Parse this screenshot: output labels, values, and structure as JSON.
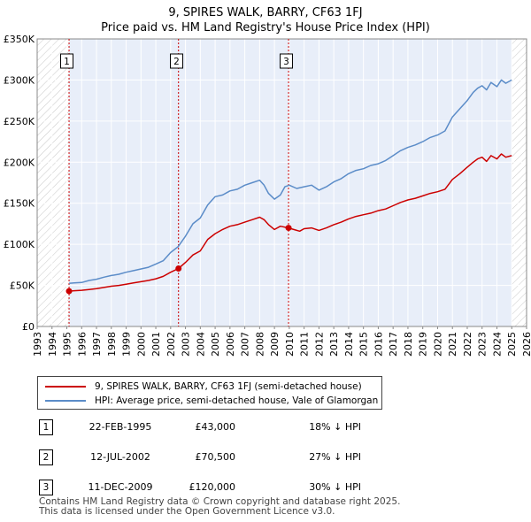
{
  "title": "9, SPIRES WALK, BARRY, CF63 1FJ",
  "subtitle": "Price paid vs. HM Land Registry's House Price Index (HPI)",
  "chart_data": {
    "type": "line",
    "xlim": [
      1993,
      2026
    ],
    "ylim": [
      0,
      350000
    ],
    "y_ticks": [
      {
        "value": 0,
        "label": "£0"
      },
      {
        "value": 50000,
        "label": "£50K"
      },
      {
        "value": 100000,
        "label": "£100K"
      },
      {
        "value": 150000,
        "label": "£150K"
      },
      {
        "value": 200000,
        "label": "£200K"
      },
      {
        "value": 250000,
        "label": "£250K"
      },
      {
        "value": 300000,
        "label": "£300K"
      },
      {
        "value": 350000,
        "label": "£350K"
      }
    ],
    "x_ticks": [
      "1993",
      "1994",
      "1995",
      "1996",
      "1997",
      "1998",
      "1999",
      "2000",
      "2001",
      "2002",
      "2003",
      "2004",
      "2005",
      "2006",
      "2007",
      "2008",
      "2009",
      "2010",
      "2011",
      "2012",
      "2013",
      "2014",
      "2015",
      "2016",
      "2017",
      "2018",
      "2019",
      "2020",
      "2021",
      "2022",
      "2023",
      "2024",
      "2025",
      "2026"
    ],
    "hatched_before": 1995.15,
    "hatched_after": 2025.0,
    "series": [
      {
        "name": "HPI: Average price, semi-detached house, Vale of Glamorgan",
        "color": "#5b8cc8",
        "x": [
          1995.15,
          1995.5,
          1996,
          1996.5,
          1997,
          1997.5,
          1998,
          1998.5,
          1999,
          1999.5,
          2000,
          2000.5,
          2001,
          2001.5,
          2002,
          2002.5,
          2003,
          2003.5,
          2004,
          2004.5,
          2005,
          2005.5,
          2006,
          2006.5,
          2007,
          2007.5,
          2008,
          2008.3,
          2008.6,
          2009,
          2009.4,
          2009.7,
          2010,
          2010.5,
          2011,
          2011.5,
          2012,
          2012.5,
          2013,
          2013.5,
          2014,
          2014.5,
          2015,
          2015.5,
          2016,
          2016.5,
          2017,
          2017.5,
          2018,
          2018.5,
          2019,
          2019.5,
          2020,
          2020.5,
          2021,
          2021.5,
          2022,
          2022.4,
          2022.7,
          2023,
          2023.3,
          2023.6,
          2024,
          2024.3,
          2024.6,
          2025
        ],
        "values": [
          52500,
          53000,
          53500,
          56000,
          57500,
          60000,
          62000,
          63500,
          66000,
          68000,
          70000,
          72000,
          76000,
          80000,
          90000,
          97000,
          110000,
          125000,
          132000,
          148000,
          158000,
          160000,
          165000,
          167000,
          172000,
          175000,
          178000,
          172000,
          162000,
          155000,
          160000,
          170000,
          172000,
          168000,
          170000,
          172000,
          166000,
          170000,
          176000,
          180000,
          186000,
          190000,
          192000,
          196000,
          198000,
          202000,
          208000,
          214000,
          218000,
          221000,
          225000,
          230000,
          233000,
          238000,
          255000,
          265000,
          275000,
          285000,
          290000,
          293000,
          288000,
          297000,
          292000,
          300000,
          296000,
          300000
        ]
      },
      {
        "name": "9, SPIRES WALK, BARRY, CF63 1FJ (semi-detached house)",
        "color": "#cc0000",
        "x": [
          1995.15,
          1995.5,
          1996,
          1996.5,
          1997,
          1997.5,
          1998,
          1998.5,
          1999,
          1999.5,
          2000,
          2000.5,
          2001,
          2001.5,
          2002,
          2002.53,
          2003,
          2003.5,
          2004,
          2004.5,
          2005,
          2005.5,
          2006,
          2006.5,
          2007,
          2007.5,
          2008,
          2008.3,
          2008.6,
          2009,
          2009.4,
          2009.95,
          2010.3,
          2010.7,
          2011,
          2011.5,
          2012,
          2012.5,
          2013,
          2013.5,
          2014,
          2014.5,
          2015,
          2015.5,
          2016,
          2016.5,
          2017,
          2017.5,
          2018,
          2018.5,
          2019,
          2019.5,
          2020,
          2020.5,
          2021,
          2021.5,
          2022,
          2022.4,
          2022.7,
          2023,
          2023.3,
          2023.6,
          2024,
          2024.3,
          2024.6,
          2025
        ],
        "values": [
          43000,
          43500,
          44000,
          45000,
          46000,
          47500,
          49000,
          50000,
          51500,
          53000,
          54500,
          56000,
          58000,
          61000,
          66000,
          70500,
          78000,
          87000,
          92000,
          106000,
          113000,
          118000,
          122000,
          124000,
          127000,
          130000,
          133000,
          130000,
          124000,
          118000,
          122000,
          120000,
          118000,
          116000,
          119000,
          120000,
          117000,
          120000,
          124000,
          127000,
          131000,
          134000,
          136000,
          138000,
          141000,
          143000,
          147000,
          151000,
          154000,
          156000,
          159000,
          162000,
          164000,
          167000,
          179000,
          186000,
          194000,
          200000,
          204000,
          206000,
          201000,
          208000,
          204000,
          210000,
          206000,
          208000
        ]
      }
    ],
    "markers": [
      {
        "label": "1",
        "x": 1995.15,
        "y": 43000,
        "box_x": 1995.0
      },
      {
        "label": "2",
        "x": 2002.53,
        "y": 70500,
        "box_x": 2002.4
      },
      {
        "label": "3",
        "x": 2009.95,
        "y": 120000,
        "box_x": 2009.8
      }
    ]
  },
  "legend": {
    "items": [
      {
        "label": "9, SPIRES WALK, BARRY, CF63 1FJ (semi-detached house)",
        "color": "#cc0000"
      },
      {
        "label": "HPI: Average price, semi-detached house, Vale of Glamorgan",
        "color": "#5b8cc8"
      }
    ]
  },
  "sales": [
    {
      "num": "1",
      "date": "22-FEB-1995",
      "price": "£43,000",
      "hpi": "18% ↓ HPI"
    },
    {
      "num": "2",
      "date": "12-JUL-2002",
      "price": "£70,500",
      "hpi": "27% ↓ HPI"
    },
    {
      "num": "3",
      "date": "11-DEC-2009",
      "price": "£120,000",
      "hpi": "30% ↓ HPI"
    }
  ],
  "footer": {
    "line1": "Contains HM Land Registry data © Crown copyright and database right 2025.",
    "line2": "This data is licensed under the Open Government Licence v3.0."
  }
}
